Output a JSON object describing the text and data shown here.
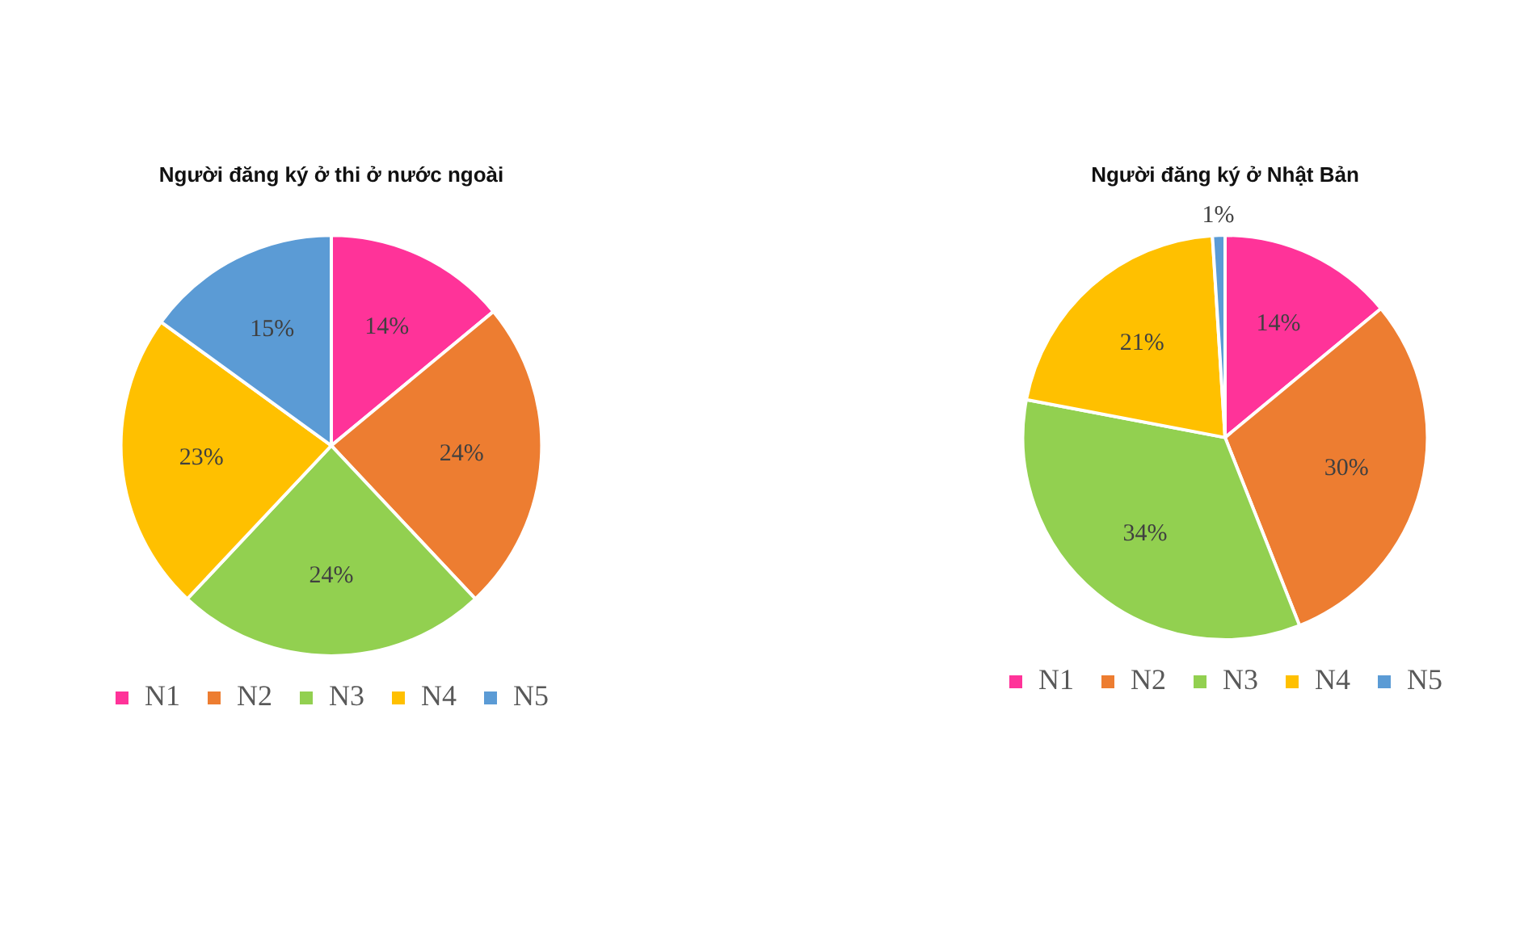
{
  "chart_data": [
    {
      "type": "pie",
      "title": "Người đăng ký ở thi ở nước ngoài",
      "categories": [
        "N1",
        "N2",
        "N3",
        "N4",
        "N5"
      ],
      "values": [
        14,
        24,
        24,
        23,
        15
      ],
      "colors": [
        "#ff3399",
        "#ed7d31",
        "#92d050",
        "#ffc000",
        "#5b9bd5"
      ],
      "value_labels": [
        "14%",
        "24%",
        "24%",
        "23%",
        "15%"
      ],
      "legend": "bottom"
    },
    {
      "type": "pie",
      "title": "Người đăng ký ở Nhật Bản",
      "categories": [
        "N1",
        "N2",
        "N3",
        "N4",
        "N5"
      ],
      "values": [
        14,
        30,
        34,
        21,
        1
      ],
      "colors": [
        "#ff3399",
        "#ed7d31",
        "#92d050",
        "#ffc000",
        "#5b9bd5"
      ],
      "value_labels": [
        "14%",
        "30%",
        "34%",
        "21%",
        "1%"
      ],
      "legend": "bottom"
    }
  ]
}
